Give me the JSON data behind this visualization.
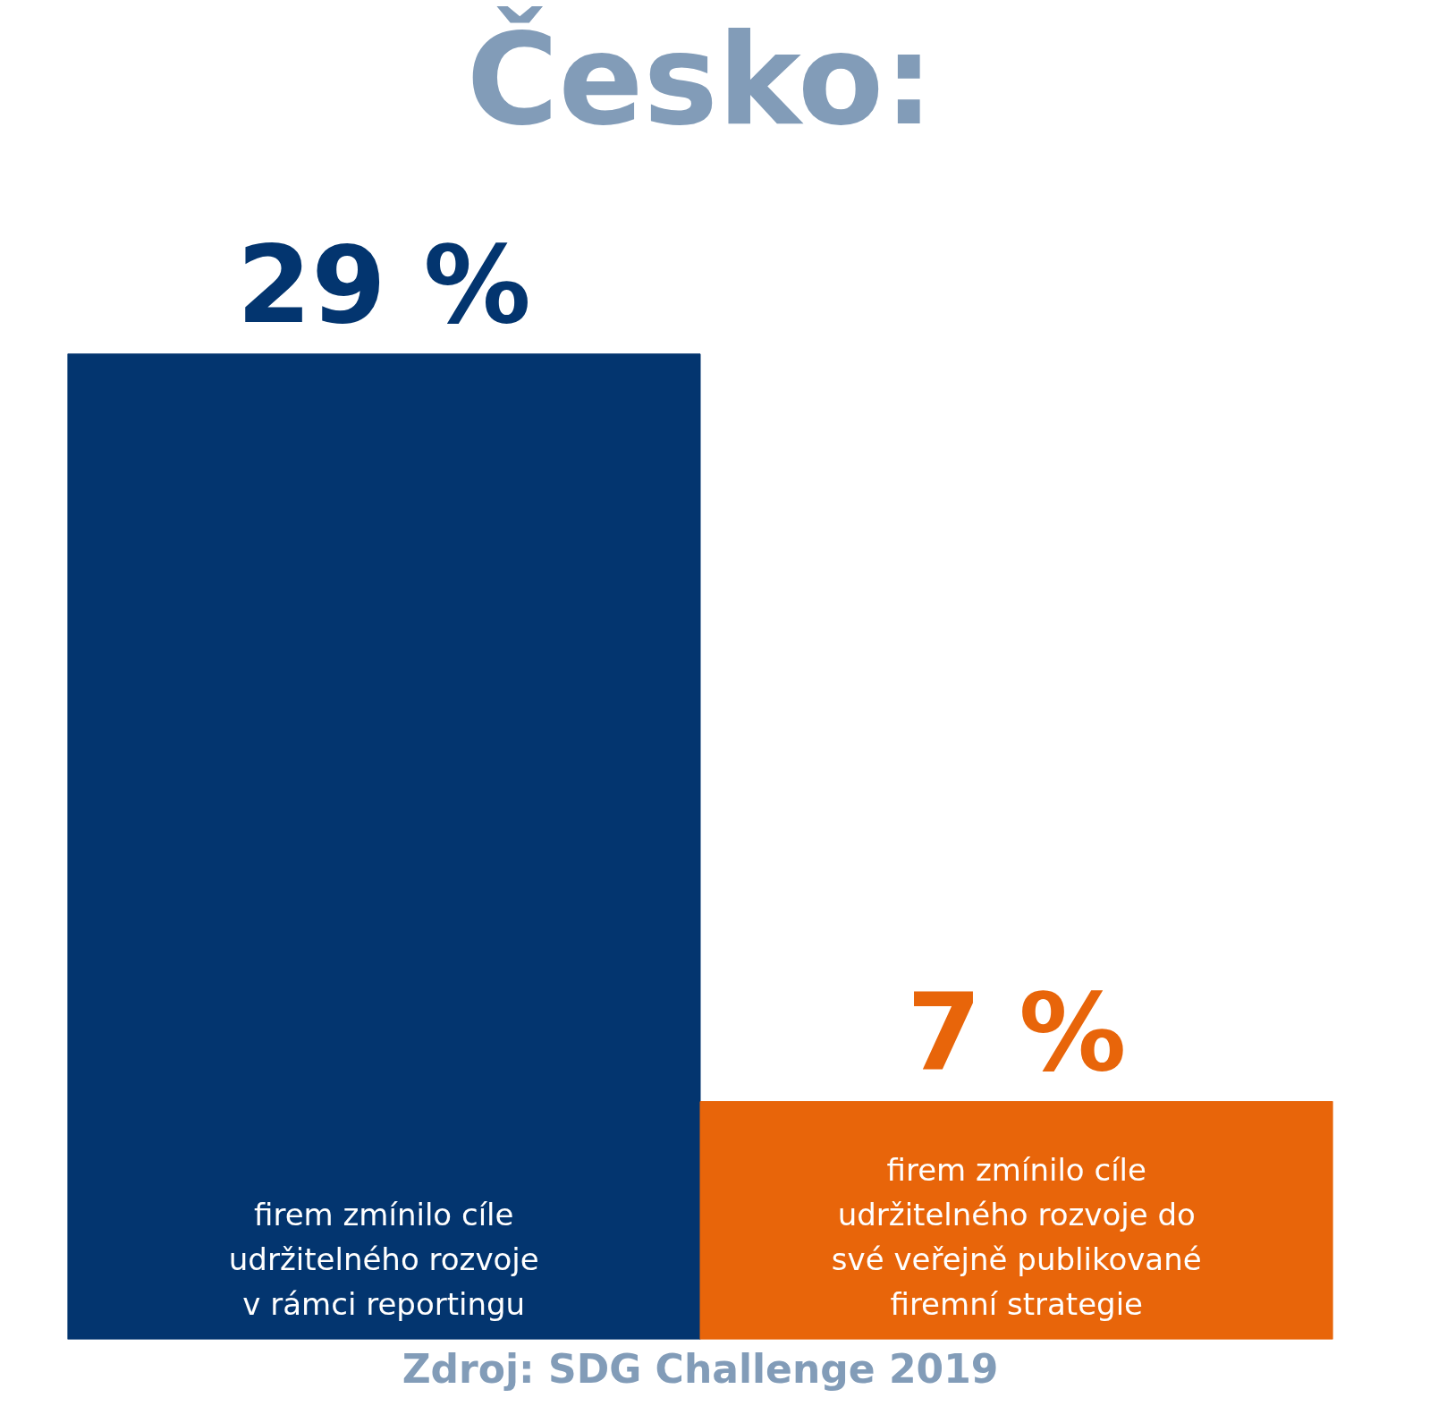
{
  "chart_data": {
    "type": "bar",
    "title": "Česko:",
    "categories": [
      "firem zmínilo cíle\nudržitelného rozvoje\nv rámci reportingu",
      "firem zmínilo cíle\nudržitelného rozvoje do\nsvé veřejně publikované\nfiremní strategie"
    ],
    "values": [
      29,
      7
    ],
    "colors": [
      "#03356f",
      "#e8650a"
    ],
    "value_labels": [
      "29 %",
      "7 %"
    ],
    "tick_labels": "x",
    "grid": false,
    "annotations": [
      "Zdroj: SDG Challenge 2019"
    ]
  }
}
